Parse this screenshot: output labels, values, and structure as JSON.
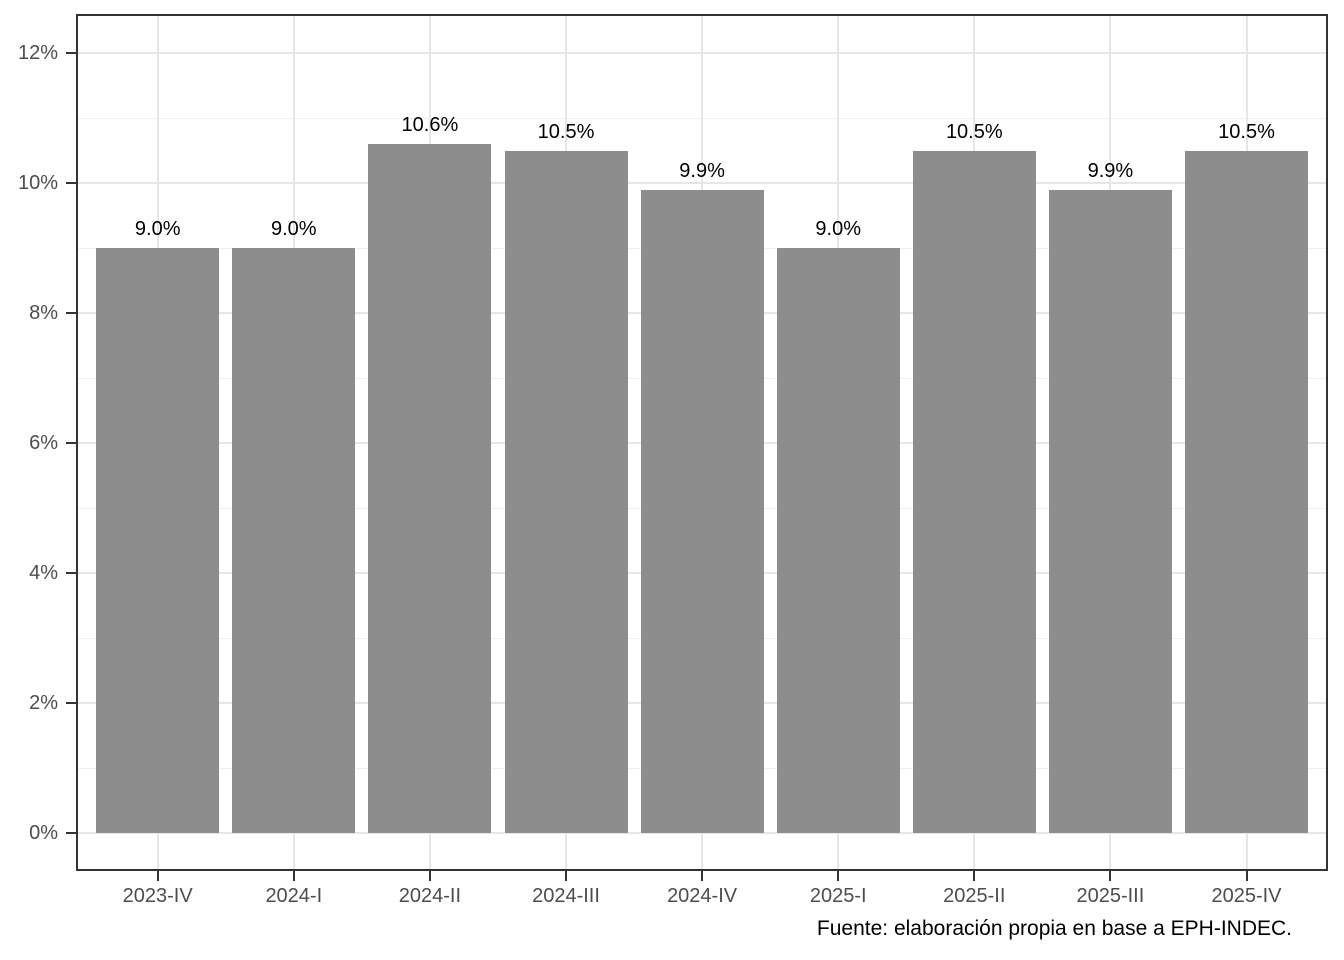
{
  "chart_data": {
    "type": "bar",
    "categories": [
      "2023-IV",
      "2024-I",
      "2024-II",
      "2024-III",
      "2024-IV",
      "2025-I",
      "2025-II",
      "2025-III",
      "2025-IV"
    ],
    "values": [
      9.0,
      9.0,
      10.6,
      10.5,
      9.9,
      9.0,
      10.5,
      9.9,
      10.5
    ],
    "bar_labels": [
      "9.0%",
      "9.0%",
      "10.6%",
      "10.5%",
      "9.9%",
      "9.0%",
      "10.5%",
      "9.9%",
      "10.5%"
    ],
    "title": "",
    "xlabel": "",
    "ylabel": "",
    "y_ticks": [
      {
        "value": 0,
        "label": "0%"
      },
      {
        "value": 2,
        "label": "2%"
      },
      {
        "value": 4,
        "label": "4%"
      },
      {
        "value": 6,
        "label": "6%"
      },
      {
        "value": 8,
        "label": "8%"
      },
      {
        "value": 10,
        "label": "10%"
      },
      {
        "value": 12,
        "label": "12%"
      }
    ],
    "y_minor_ticks": [
      1,
      3,
      5,
      7,
      9,
      11
    ],
    "ylim": [
      -0.6,
      12.6
    ],
    "grid": {
      "horizontal_major": true,
      "horizontal_minor": true,
      "vertical_major_at_categories": true
    },
    "legend": "none",
    "caption": "Fuente: elaboración propia en base a EPH-INDEC.",
    "colors": {
      "bar_fill": "#8d8d8d",
      "grid_major": "#e6e6e6",
      "grid_minor": "#f0f0f0",
      "panel_border": "#333333",
      "tick": "#333333",
      "axis_text": "#4d4d4d",
      "bar_label_text": "#000000",
      "caption_text": "#000000",
      "background": "#ffffff"
    }
  }
}
